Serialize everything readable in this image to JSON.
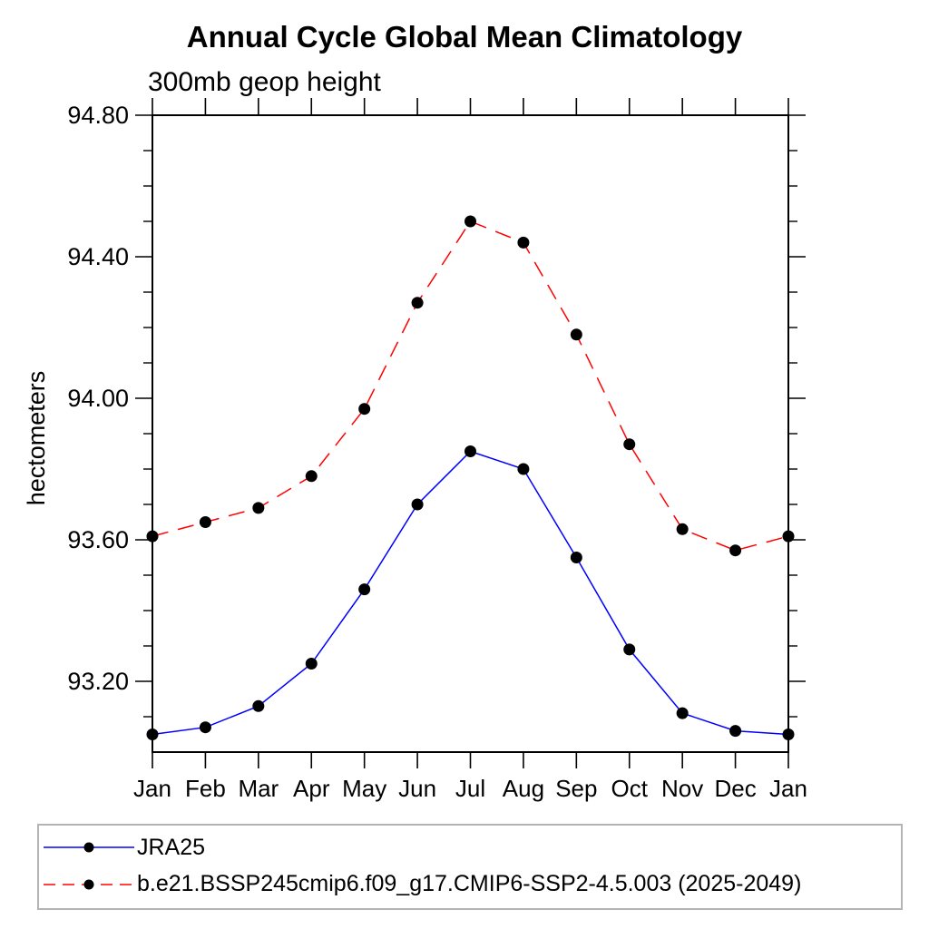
{
  "chart_data": {
    "type": "line",
    "title": "Annual Cycle Global Mean Climatology",
    "subtitle": "300mb geop height",
    "ylabel": "hectometers",
    "x_tick_labels": [
      "Jan",
      "Feb",
      "Mar",
      "Apr",
      "May",
      "Jun",
      "Jul",
      "Aug",
      "Sep",
      "Oct",
      "Nov",
      "Dec",
      "Jan"
    ],
    "y_tick_labels": [
      "94.80",
      "94.40",
      "94.00",
      "93.60",
      "93.20"
    ],
    "y_major_ticks": [
      94.8,
      94.4,
      94.0,
      93.6,
      93.2
    ],
    "y_minor_step": 0.1,
    "ylim": [
      93.0,
      94.8
    ],
    "grid": false,
    "legend_position": "bottom",
    "axis_color": "#000000",
    "marker_color": "#000000",
    "series": [
      {
        "name": "JRA25",
        "color": "#0000ff",
        "line_style": "solid",
        "marker": "filled-circle",
        "values": [
          93.05,
          93.07,
          93.13,
          93.25,
          93.46,
          93.7,
          93.85,
          93.8,
          93.55,
          93.29,
          93.11,
          93.06,
          93.05
        ]
      },
      {
        "name": "b.e21.BSSP245cmip6.f09_g17.CMIP6-SSP2-4.5.003 (2025-2049)",
        "color": "#ff0000",
        "line_style": "dashed",
        "marker": "filled-circle",
        "values": [
          93.61,
          93.65,
          93.69,
          93.78,
          93.97,
          94.27,
          94.5,
          94.44,
          94.18,
          93.87,
          93.63,
          93.57,
          93.61
        ]
      }
    ]
  }
}
